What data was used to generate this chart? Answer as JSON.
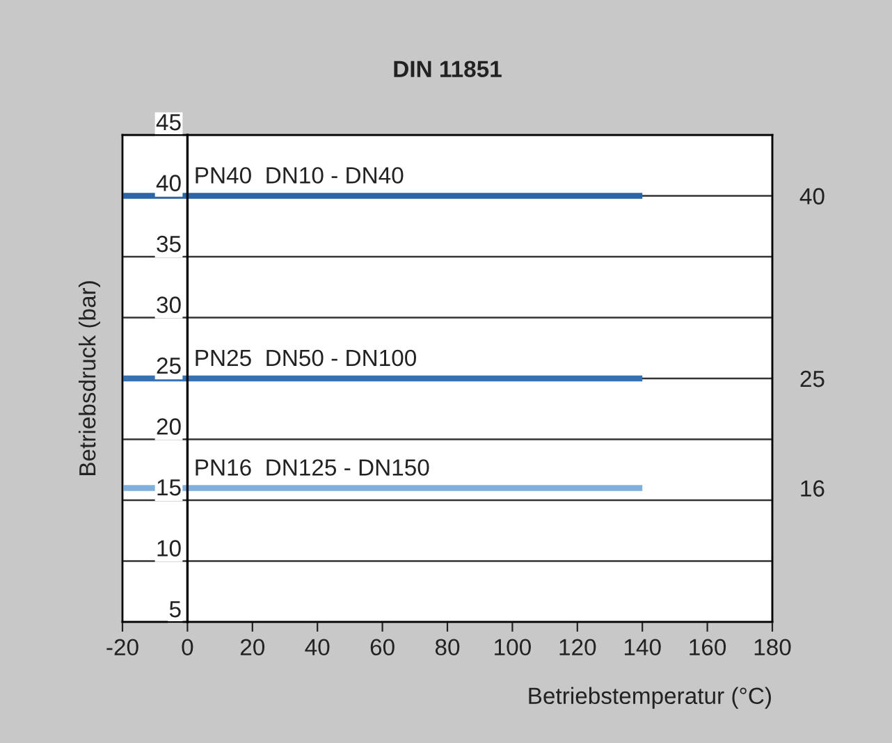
{
  "chart_data": {
    "type": "line",
    "title": "DIN 11851",
    "xlabel": "Betriebstemperatur (°C)",
    "ylabel": "Betriebsdruck (bar)",
    "xlim": [
      -20,
      180
    ],
    "xticks": [
      -20,
      0,
      20,
      40,
      60,
      80,
      100,
      120,
      140,
      160,
      180
    ],
    "ylim": [
      5,
      45
    ],
    "yticks": [
      5,
      10,
      15,
      20,
      25,
      30,
      35,
      40,
      45
    ],
    "y2lim": [
      5,
      45
    ],
    "y2ticks": [
      16,
      25,
      40
    ],
    "x": [
      -20,
      140
    ],
    "grid": "y",
    "legend": false,
    "marker": "none",
    "line_style": "solid",
    "series": [
      {
        "name": "PN40  DN10 - DN40",
        "color": "#2b65a8",
        "values": [
          40,
          40
        ]
      },
      {
        "name": "PN25  DN50 - DN100",
        "color": "#3571b5",
        "values": [
          25,
          25
        ]
      },
      {
        "name": "PN16  DN125 - DN150",
        "color": "#7fb0dd",
        "values": [
          16,
          16
        ]
      }
    ]
  }
}
